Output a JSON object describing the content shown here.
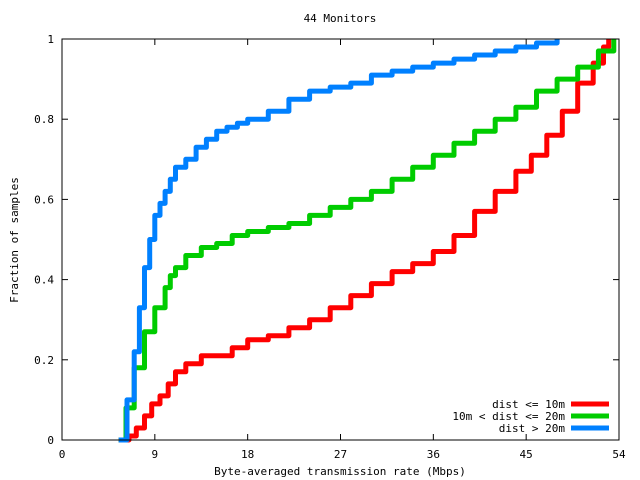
{
  "chart_data": {
    "type": "line",
    "title": "44 Monitors",
    "xlabel": "Byte-averaged transmission rate (Mbps)",
    "ylabel": "Fraction of samples",
    "xlim": [
      0,
      54
    ],
    "ylim": [
      0,
      1
    ],
    "xticks": [
      0,
      9,
      18,
      27,
      36,
      45,
      54
    ],
    "xtick_labels": [
      "0",
      "9",
      "18",
      "27",
      "36",
      "45",
      "54"
    ],
    "yticks": [
      0,
      0.2,
      0.4,
      0.6,
      0.8,
      1
    ],
    "ytick_labels": [
      "0",
      "0.2",
      "0.4",
      "0.6",
      "0.8",
      "1"
    ],
    "grid": false,
    "legend_position": "bottom-right",
    "series": [
      {
        "name": "dist <= 10m",
        "color": "#ff0000",
        "x": [
          5.5,
          6.5,
          7.2,
          8.0,
          8.7,
          9.5,
          10.3,
          11.0,
          12.0,
          13.5,
          15.0,
          16.5,
          18.0,
          20.0,
          22.0,
          24.0,
          26.0,
          28.0,
          30.0,
          32.0,
          34.0,
          36.0,
          38.0,
          40.0,
          42.0,
          44.0,
          45.5,
          47.0,
          48.5,
          50.0,
          51.5,
          52.5,
          53.0
        ],
        "y": [
          0.0,
          0.01,
          0.03,
          0.06,
          0.09,
          0.11,
          0.14,
          0.17,
          0.19,
          0.21,
          0.21,
          0.23,
          0.25,
          0.26,
          0.28,
          0.3,
          0.33,
          0.36,
          0.39,
          0.42,
          0.44,
          0.47,
          0.51,
          0.57,
          0.62,
          0.67,
          0.71,
          0.76,
          0.82,
          0.89,
          0.94,
          0.98,
          1.0
        ]
      },
      {
        "name": "10m < dist <= 20m",
        "color": "#00cc00",
        "x": [
          5.5,
          6.2,
          7.0,
          8.0,
          9.0,
          10.0,
          10.5,
          11.0,
          12.0,
          13.5,
          15.0,
          16.5,
          18.0,
          20.0,
          22.0,
          24.0,
          26.0,
          28.0,
          30.0,
          32.0,
          34.0,
          36.0,
          38.0,
          40.0,
          42.0,
          44.0,
          46.0,
          48.0,
          50.0,
          52.0,
          53.5
        ],
        "y": [
          0.0,
          0.08,
          0.18,
          0.27,
          0.33,
          0.38,
          0.41,
          0.43,
          0.46,
          0.48,
          0.49,
          0.51,
          0.52,
          0.53,
          0.54,
          0.56,
          0.58,
          0.6,
          0.62,
          0.65,
          0.68,
          0.71,
          0.74,
          0.77,
          0.8,
          0.83,
          0.87,
          0.9,
          0.93,
          0.97,
          1.0
        ]
      },
      {
        "name": "dist > 20m",
        "color": "#0080ff",
        "x": [
          5.5,
          6.3,
          7.0,
          7.5,
          8.0,
          8.5,
          9.0,
          9.5,
          10.0,
          10.5,
          11.0,
          12.0,
          13.0,
          14.0,
          15.0,
          16.0,
          17.0,
          18.0,
          20.0,
          22.0,
          24.0,
          26.0,
          28.0,
          30.0,
          32.0,
          34.0,
          36.0,
          38.0,
          40.0,
          42.0,
          44.0,
          46.0,
          48.0
        ],
        "y": [
          0.0,
          0.1,
          0.22,
          0.33,
          0.43,
          0.5,
          0.56,
          0.59,
          0.62,
          0.65,
          0.68,
          0.7,
          0.73,
          0.75,
          0.77,
          0.78,
          0.79,
          0.8,
          0.82,
          0.85,
          0.87,
          0.88,
          0.89,
          0.91,
          0.92,
          0.93,
          0.94,
          0.95,
          0.96,
          0.97,
          0.98,
          0.99,
          1.0
        ]
      }
    ]
  }
}
